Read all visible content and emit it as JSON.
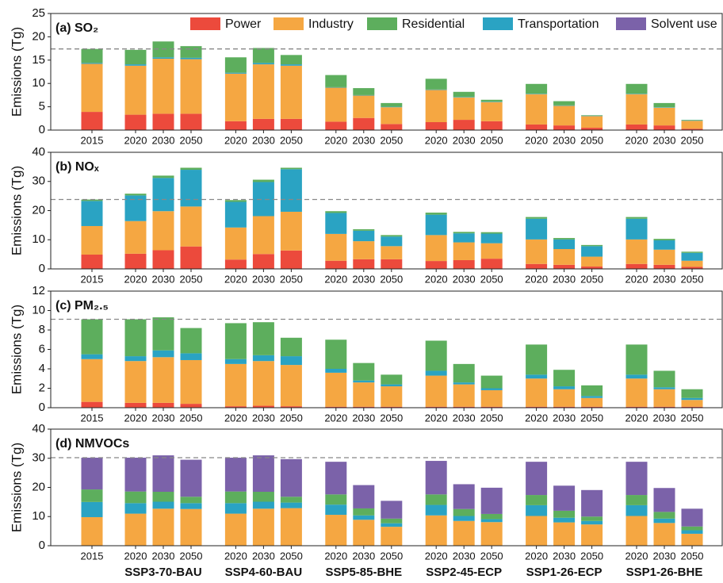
{
  "chart_data": [
    {
      "type": "stacked_bar",
      "title": "(a) SO₂",
      "ylabel": "Emissions (Tg)",
      "categories": [
        "2015",
        "2020",
        "2030",
        "2050",
        "2020",
        "2030",
        "2050",
        "2020",
        "2030",
        "2050",
        "2020",
        "2030",
        "2050",
        "2020",
        "2030",
        "2050",
        "2020",
        "2030",
        "2050"
      ],
      "ylim": [
        0,
        25
      ],
      "yticks": [
        0,
        5,
        10,
        15,
        20,
        25
      ],
      "legend": true,
      "reference_line": "dashed",
      "series": [
        {
          "name": "Power",
          "color": "#ec4a3c",
          "values": [
            3.9,
            3.3,
            3.5,
            3.5,
            1.9,
            2.4,
            2.4,
            1.8,
            2.6,
            1.3,
            1.7,
            2.2,
            1.9,
            1.2,
            1.0,
            0.5,
            1.2,
            1.0,
            0.3
          ]
        },
        {
          "name": "Industry",
          "color": "#f5a742",
          "values": [
            10.3,
            10.5,
            11.8,
            11.7,
            10.2,
            11.7,
            11.4,
            7.3,
            4.8,
            3.6,
            6.9,
            4.8,
            4.1,
            6.5,
            4.2,
            2.5,
            6.5,
            3.8,
            1.7
          ]
        },
        {
          "name": "Transportation",
          "color": "#2aa3c3",
          "values": [
            0.2,
            0.3,
            0.3,
            0.3,
            0.2,
            0.3,
            0.3,
            0.1,
            0.1,
            0.1,
            0.1,
            0.1,
            0.1,
            0.1,
            0.1,
            0.1,
            0.1,
            0.1,
            0.1
          ]
        },
        {
          "name": "Residential",
          "color": "#5dae5d",
          "values": [
            3.0,
            3.1,
            3.4,
            2.5,
            3.3,
            3.2,
            2.0,
            2.6,
            1.5,
            0.8,
            2.3,
            1.1,
            0.4,
            2.1,
            0.9,
            0.1,
            2.1,
            0.9,
            0.1
          ]
        },
        {
          "name": "Solvent use",
          "color": "#7b62a9",
          "values": [
            0,
            0,
            0,
            0,
            0,
            0,
            0,
            0,
            0,
            0,
            0,
            0,
            0,
            0,
            0,
            0,
            0,
            0,
            0
          ]
        }
      ]
    },
    {
      "type": "stacked_bar",
      "title": "(b) NOₓ",
      "ylabel": "Emissions (Tg)",
      "categories": [
        "2015",
        "2020",
        "2030",
        "2050",
        "2020",
        "2030",
        "2050",
        "2020",
        "2030",
        "2050",
        "2020",
        "2030",
        "2050",
        "2020",
        "2030",
        "2050",
        "2020",
        "2030",
        "2050"
      ],
      "ylim": [
        0,
        40
      ],
      "yticks": [
        0,
        10,
        20,
        30,
        40
      ],
      "legend": false,
      "reference_line": "dashed",
      "series": [
        {
          "color": "#ec4a3c",
          "values": [
            4.9,
            5.2,
            6.4,
            7.7,
            3.2,
            5.1,
            6.3,
            2.8,
            3.3,
            3.3,
            2.7,
            3.0,
            3.5,
            1.7,
            1.4,
            0.8,
            1.7,
            1.4,
            0.7
          ]
        },
        {
          "color": "#f5a742",
          "values": [
            9.8,
            11.2,
            13.4,
            13.7,
            11.0,
            13.0,
            13.3,
            9.2,
            6.2,
            4.5,
            8.9,
            6.1,
            5.3,
            8.4,
            5.4,
            3.4,
            8.4,
            5.2,
            2.1
          ]
        },
        {
          "color": "#2aa3c3",
          "values": [
            8.6,
            8.8,
            11.4,
            12.6,
            8.8,
            11.7,
            14.6,
            7.2,
            3.6,
            3.3,
            7.0,
            3.1,
            3.3,
            7.1,
            3.3,
            3.6,
            7.1,
            3.2,
            2.7
          ]
        },
        {
          "color": "#5dae5d",
          "values": [
            0.5,
            0.6,
            0.8,
            0.7,
            0.6,
            0.8,
            0.5,
            0.6,
            0.5,
            0.5,
            0.7,
            0.5,
            0.5,
            0.6,
            0.5,
            0.4,
            0.6,
            0.5,
            0.4
          ]
        }
      ]
    },
    {
      "type": "stacked_bar",
      "title": "(c) PM₂.₅",
      "ylabel": "Emissions (Tg)",
      "categories": [
        "2015",
        "2020",
        "2030",
        "2050",
        "2020",
        "2030",
        "2050",
        "2020",
        "2030",
        "2050",
        "2020",
        "2030",
        "2050",
        "2020",
        "2030",
        "2050",
        "2020",
        "2030",
        "2050"
      ],
      "ylim": [
        0,
        12
      ],
      "yticks": [
        0,
        2,
        4,
        6,
        8,
        10,
        12
      ],
      "legend": false,
      "reference_line": "dashed",
      "series": [
        {
          "color": "#ec4a3c",
          "values": [
            0.6,
            0.5,
            0.5,
            0.4,
            0.15,
            0.2,
            0.15,
            0.1,
            0.1,
            0.1,
            0.1,
            0.1,
            0.1,
            0.1,
            0.1,
            0.1,
            0.1,
            0.1,
            0.1
          ]
        },
        {
          "color": "#f5a742",
          "values": [
            4.4,
            4.3,
            4.7,
            4.5,
            4.35,
            4.6,
            4.25,
            3.5,
            2.5,
            2.1,
            3.2,
            2.3,
            1.7,
            2.9,
            1.8,
            0.9,
            2.9,
            1.8,
            0.7
          ]
        },
        {
          "color": "#2aa3c3",
          "values": [
            0.5,
            0.5,
            0.7,
            0.7,
            0.5,
            0.6,
            0.9,
            0.4,
            0.2,
            0.2,
            0.5,
            0.2,
            0.2,
            0.4,
            0.3,
            0.2,
            0.4,
            0.2,
            0.2
          ]
        },
        {
          "color": "#5dae5d",
          "values": [
            3.6,
            3.8,
            3.4,
            2.6,
            3.7,
            3.4,
            1.9,
            3.0,
            1.8,
            1.0,
            3.1,
            1.9,
            1.3,
            3.1,
            1.7,
            1.1,
            3.1,
            1.7,
            0.9
          ]
        }
      ]
    },
    {
      "type": "stacked_bar",
      "title": "(d) NMVOCs",
      "ylabel": "Emissions (Tg)",
      "categories": [
        "2015",
        "2020",
        "2030",
        "2050",
        "2020",
        "2030",
        "2050",
        "2020",
        "2030",
        "2050",
        "2020",
        "2030",
        "2050",
        "2020",
        "2030",
        "2050",
        "2020",
        "2030",
        "2050"
      ],
      "ylim": [
        0,
        40
      ],
      "yticks": [
        0,
        10,
        20,
        30,
        40
      ],
      "legend": false,
      "reference_line": "dashed",
      "group_labels": [
        "SSP3-70-BAU",
        "SSP4-60-BAU",
        "SSP5-85-BHE",
        "SSP2-45-ECP",
        "SSP1-26-ECP",
        "SSP1-26-BHE"
      ],
      "series": [
        {
          "color": "#f5a742",
          "values": [
            9.8,
            11.0,
            12.7,
            12.6,
            11.0,
            12.7,
            12.9,
            10.6,
            8.9,
            6.5,
            10.4,
            8.5,
            8.1,
            10.2,
            8.0,
            7.3,
            10.2,
            7.8,
            4.1
          ]
        },
        {
          "color": "#2aa3c3",
          "values": [
            5.2,
            3.6,
            2.4,
            2.0,
            3.6,
            2.4,
            1.9,
            3.5,
            1.5,
            1.2,
            3.6,
            1.7,
            1.0,
            3.7,
            1.6,
            1.2,
            3.7,
            1.5,
            1.2
          ]
        },
        {
          "color": "#5dae5d",
          "values": [
            4.3,
            4.0,
            3.4,
            2.2,
            4.0,
            3.4,
            2.0,
            3.5,
            2.4,
            1.6,
            3.6,
            2.4,
            1.8,
            3.5,
            2.4,
            1.5,
            3.5,
            2.3,
            1.3
          ]
        },
        {
          "color": "#7b62a9",
          "values": [
            10.9,
            11.6,
            12.5,
            12.7,
            11.6,
            12.5,
            12.9,
            11.2,
            8.0,
            6.1,
            11.5,
            8.5,
            9.0,
            11.4,
            8.6,
            9.1,
            11.4,
            8.2,
            6.1
          ]
        }
      ]
    }
  ]
}
